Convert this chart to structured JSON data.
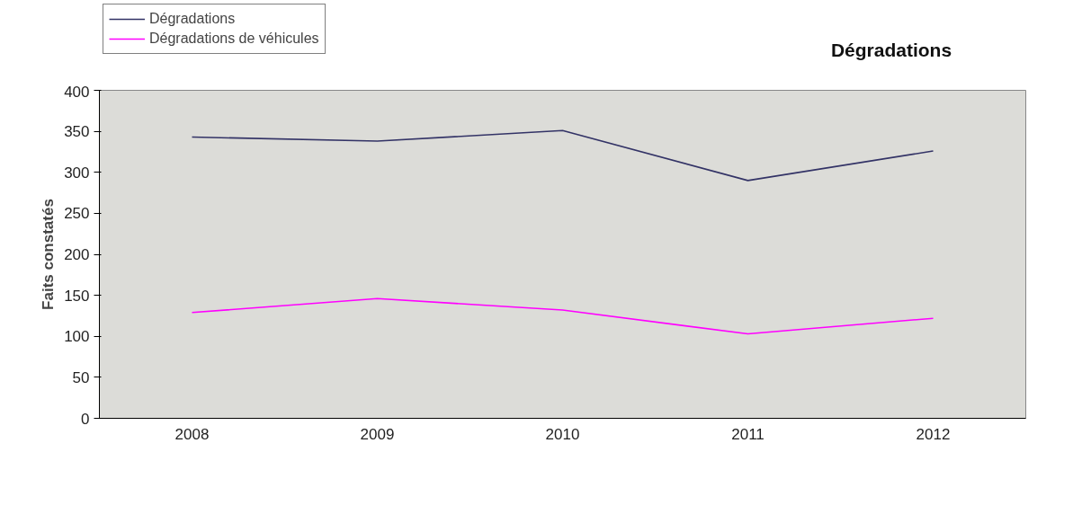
{
  "chart_data": {
    "type": "line",
    "title": "Dégradations",
    "ylabel": "Faits constatés",
    "categories": [
      "2008",
      "2009",
      "2010",
      "2011",
      "2012"
    ],
    "series": [
      {
        "name": "Dégradations",
        "color": "#333366",
        "values": [
          343,
          338,
          351,
          290,
          326
        ]
      },
      {
        "name": "Dégradations de véhicules",
        "color": "#ff00ff",
        "values": [
          129,
          146,
          132,
          103,
          122
        ]
      }
    ],
    "ylim": [
      0,
      400
    ],
    "yticks": [
      0,
      50,
      100,
      150,
      200,
      250,
      300,
      350,
      400
    ],
    "grid": false,
    "legend": "top left",
    "marker": "none",
    "line_style": "solid"
  }
}
